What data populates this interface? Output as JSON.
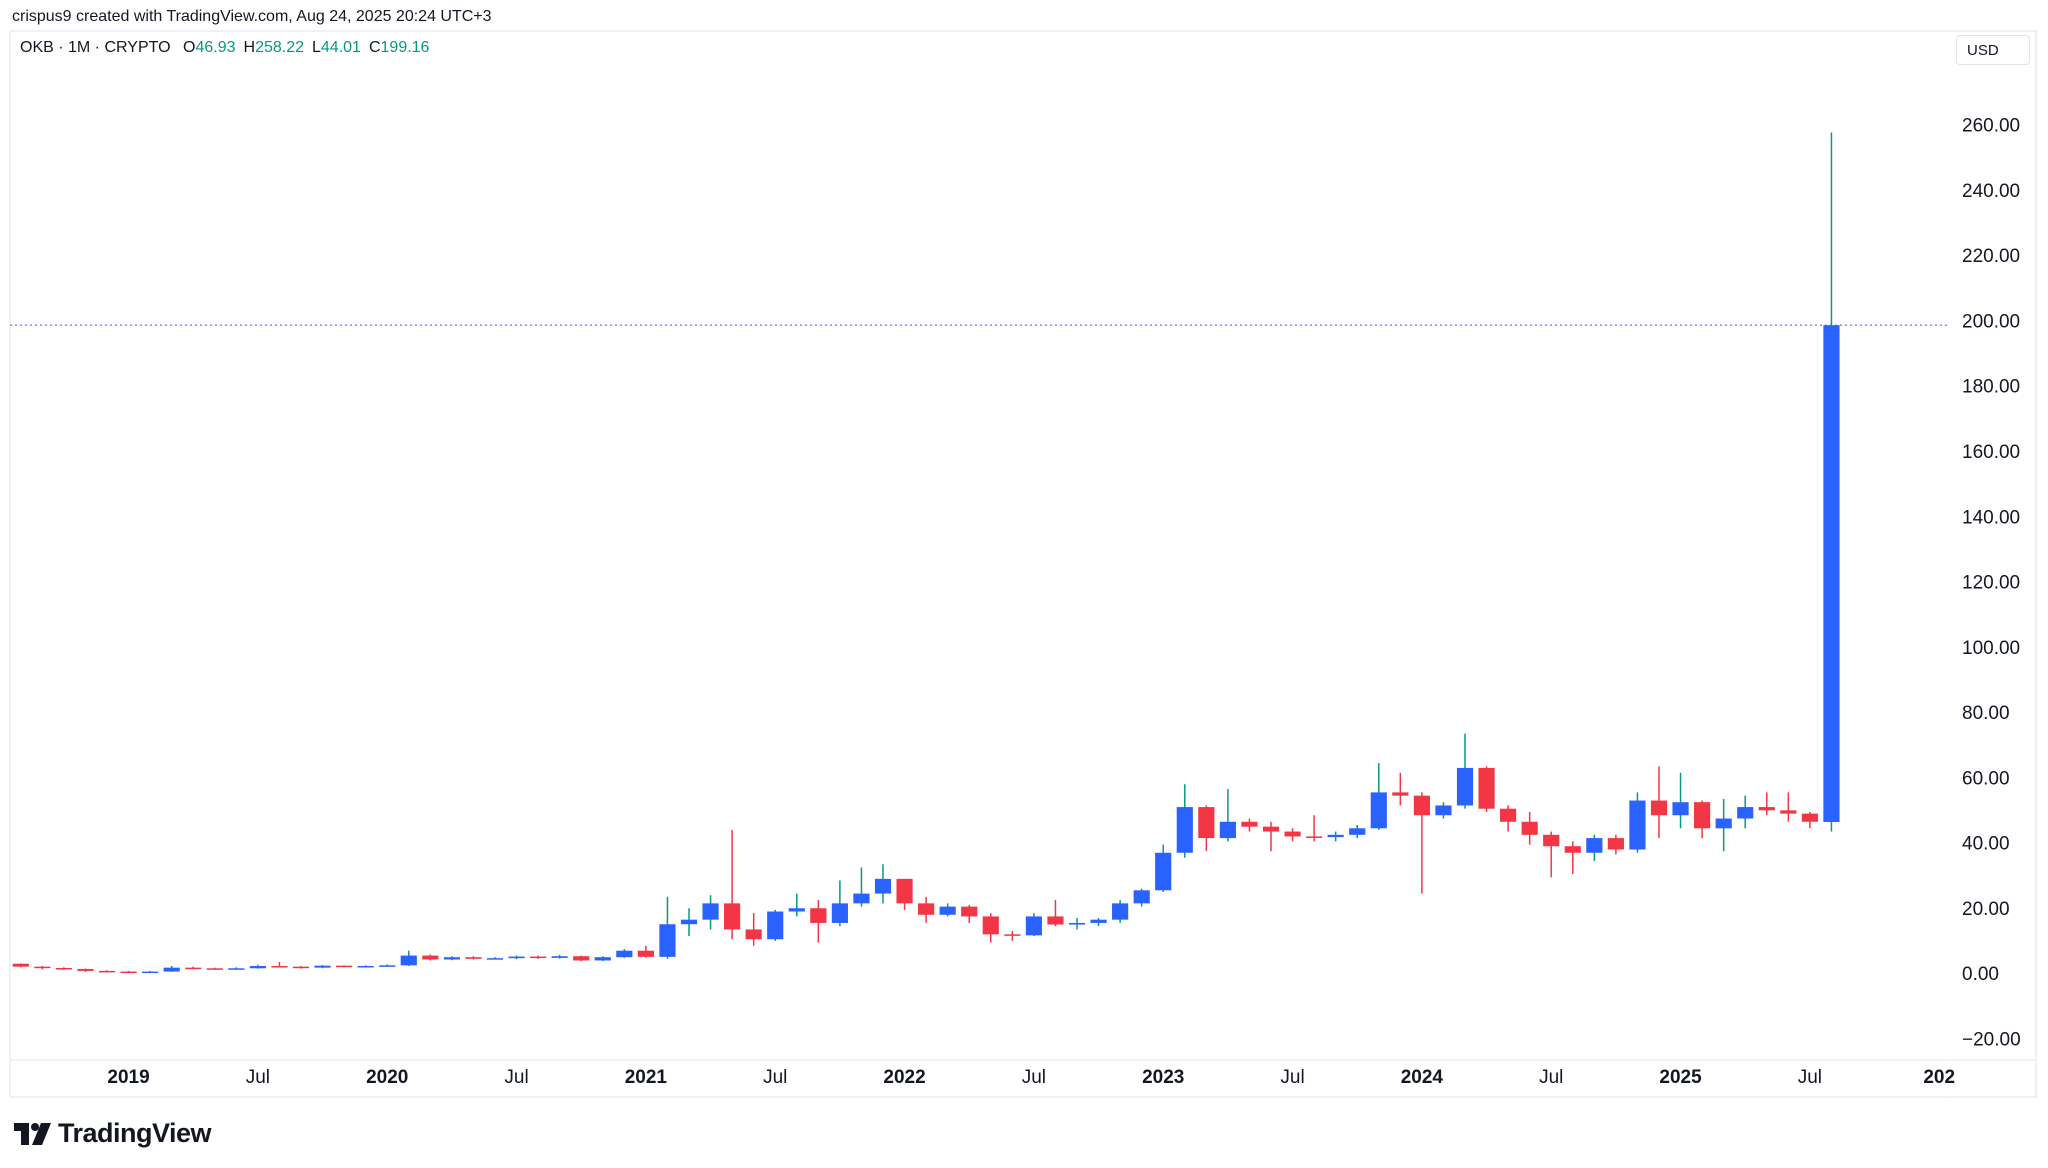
{
  "attribution": "crispus9 created with TradingView.com, Aug 24, 2025 20:24 UTC+3",
  "footer": {
    "logo_text": "TradingView"
  },
  "chart_data": {
    "type": "candlestick",
    "symbol": "OKB · 1M · CRYPTO",
    "ohlc_labels": [
      "O",
      "H",
      "L",
      "C"
    ],
    "currency": "USD",
    "up_color": "#2962ff",
    "down_color": "#f23645",
    "up_wick_color": "#089981",
    "down_wick_color": "#f23645",
    "value_color": "#089981",
    "price_line_color": "#7b7ff5",
    "x": [
      "2018-08",
      "2018-09",
      "2018-10",
      "2018-11",
      "2018-12",
      "2019-01",
      "2019-02",
      "2019-03",
      "2019-04",
      "2019-05",
      "2019-06",
      "2019-07",
      "2019-08",
      "2019-09",
      "2019-10",
      "2019-11",
      "2019-12",
      "2020-01",
      "2020-02",
      "2020-03",
      "2020-04",
      "2020-05",
      "2020-06",
      "2020-07",
      "2020-08",
      "2020-09",
      "2020-10",
      "2020-11",
      "2020-12",
      "2021-01",
      "2021-02",
      "2021-03",
      "2021-04",
      "2021-05",
      "2021-06",
      "2021-07",
      "2021-08",
      "2021-09",
      "2021-10",
      "2021-11",
      "2021-12",
      "2022-01",
      "2022-02",
      "2022-03",
      "2022-04",
      "2022-05",
      "2022-06",
      "2022-07",
      "2022-08",
      "2022-09",
      "2022-10",
      "2022-11",
      "2022-12",
      "2023-01",
      "2023-02",
      "2023-03",
      "2023-04",
      "2023-05",
      "2023-06",
      "2023-07",
      "2023-08",
      "2023-09",
      "2023-10",
      "2023-11",
      "2023-12",
      "2024-01",
      "2024-02",
      "2024-03",
      "2024-04",
      "2024-05",
      "2024-06",
      "2024-07",
      "2024-08",
      "2024-09",
      "2024-10",
      "2024-11",
      "2024-12",
      "2025-01",
      "2025-02",
      "2025-03",
      "2025-04",
      "2025-05",
      "2025-06",
      "2025-07",
      "2025-08"
    ],
    "open": [
      3.5,
      2.6,
      2.2,
      1.9,
      1.3,
      1.1,
      1.0,
      1.1,
      2.3,
      2.1,
      1.9,
      2.1,
      2.8,
      2.6,
      2.3,
      2.9,
      2.6,
      2.8,
      3.0,
      6.0,
      4.8,
      5.5,
      5.0,
      5.2,
      5.7,
      5.3,
      5.8,
      4.5,
      5.5,
      7.5,
      5.6,
      15.6,
      17,
      22,
      14,
      11,
      19.5,
      20.5,
      16,
      22,
      25,
      29.5,
      22,
      18.5,
      21,
      18,
      12.5,
      12.2,
      18,
      15.5,
      16,
      17,
      22,
      26,
      37.5,
      51.5,
      42,
      47,
      45.5,
      44,
      42.5,
      42.3,
      43,
      45,
      56,
      55,
      49,
      52,
      63.5,
      51,
      47,
      43,
      39.5,
      37.5,
      42,
      38.5,
      53.5,
      49,
      53,
      45,
      48,
      51.5,
      50.5,
      49.5,
      46.93
    ],
    "high": [
      3.6,
      2.8,
      2.4,
      2.0,
      1.5,
      1.3,
      1.3,
      2.8,
      2.6,
      2.3,
      2.4,
      3.2,
      4.0,
      2.8,
      3.1,
      3.0,
      3.0,
      3.3,
      7.5,
      6.3,
      5.8,
      5.8,
      5.5,
      6.0,
      6.0,
      6.2,
      6.0,
      5.8,
      8.0,
      9.0,
      24,
      20.5,
      24.5,
      44.5,
      19,
      20,
      25,
      23,
      29,
      33,
      34,
      29.5,
      24,
      22,
      21.5,
      19,
      13.5,
      19,
      23,
      17.5,
      17.5,
      23,
      26.5,
      40,
      58.5,
      52,
      57,
      48,
      47,
      45,
      49,
      44,
      46,
      65,
      62,
      56,
      53,
      74,
      64,
      52,
      50,
      44,
      41,
      43,
      43,
      56,
      64,
      62,
      53.5,
      54,
      55,
      56,
      56,
      50,
      258.22
    ],
    "low": [
      2.4,
      1.8,
      1.6,
      1.0,
      0.9,
      0.9,
      0.9,
      1.0,
      1.9,
      1.7,
      1.8,
      2.0,
      2.4,
      2.0,
      2.1,
      2.4,
      2.5,
      2.6,
      2.8,
      4.5,
      4.6,
      4.8,
      4.8,
      4.9,
      5.0,
      5.1,
      4.3,
      4.3,
      5.3,
      5.4,
      5,
      12,
      14,
      11,
      9,
      10.5,
      18,
      10,
      15,
      21,
      22,
      20,
      16,
      18,
      16,
      10,
      10.5,
      12,
      15,
      14,
      15,
      16,
      21,
      25.5,
      36,
      38,
      41,
      44,
      38,
      41,
      41,
      41,
      42,
      44.5,
      52,
      25,
      48,
      51,
      50,
      44,
      40,
      30,
      31,
      35,
      37,
      37.5,
      42,
      45,
      42,
      38,
      45,
      49,
      47,
      45,
      44.01
    ],
    "close": [
      2.6,
      2.2,
      1.9,
      1.3,
      1.1,
      1.0,
      1.1,
      2.3,
      2.1,
      1.9,
      2.1,
      2.8,
      2.6,
      2.3,
      2.9,
      2.6,
      2.8,
      3.0,
      6.0,
      4.8,
      5.5,
      5.0,
      5.2,
      5.7,
      5.3,
      5.8,
      4.5,
      5.5,
      7.5,
      5.6,
      15.6,
      17,
      22,
      14,
      11,
      19.5,
      20.5,
      16,
      22,
      25,
      29.5,
      22,
      18.5,
      21,
      18,
      12.5,
      12.2,
      18,
      15.5,
      16,
      17,
      22,
      26,
      37.5,
      51.5,
      42,
      47,
      45.5,
      44,
      42.5,
      42.3,
      43,
      45,
      56,
      55,
      49,
      52,
      63.5,
      51,
      47,
      43,
      39.5,
      37.5,
      42,
      38.5,
      53.5,
      49,
      53,
      45,
      48,
      51.5,
      50.5,
      49.5,
      47,
      199.16
    ],
    "xlim": [
      "2018-08",
      "2026-01"
    ],
    "xticks": [
      {
        "value": "2019-01",
        "label": "2019"
      },
      {
        "value": "2019-07",
        "label": "Jul"
      },
      {
        "value": "2020-01",
        "label": "2020"
      },
      {
        "value": "2020-07",
        "label": "Jul"
      },
      {
        "value": "2021-01",
        "label": "2021"
      },
      {
        "value": "2021-07",
        "label": "Jul"
      },
      {
        "value": "2022-01",
        "label": "2022"
      },
      {
        "value": "2022-07",
        "label": "Jul"
      },
      {
        "value": "2023-01",
        "label": "2023"
      },
      {
        "value": "2023-07",
        "label": "Jul"
      },
      {
        "value": "2024-01",
        "label": "2024"
      },
      {
        "value": "2024-07",
        "label": "Jul"
      },
      {
        "value": "2025-01",
        "label": "2025"
      },
      {
        "value": "2025-07",
        "label": "Jul"
      },
      {
        "value": "2026-01",
        "label": "202"
      }
    ],
    "ylim": [
      -26,
      289
    ],
    "yticks": [
      {
        "value": -20,
        "label": "−20.00"
      },
      {
        "value": 0,
        "label": "0.00"
      },
      {
        "value": 20,
        "label": "20.00"
      },
      {
        "value": 40,
        "label": "40.00"
      },
      {
        "value": 60,
        "label": "60.00"
      },
      {
        "value": 80,
        "label": "80.00"
      },
      {
        "value": 100,
        "label": "100.00"
      },
      {
        "value": 120,
        "label": "120.00"
      },
      {
        "value": 140,
        "label": "140.00"
      },
      {
        "value": 160,
        "label": "160.00"
      },
      {
        "value": 180,
        "label": "180.00"
      },
      {
        "value": 200,
        "label": "200.00"
      },
      {
        "value": 220,
        "label": "220.00"
      },
      {
        "value": 240,
        "label": "240.00"
      },
      {
        "value": 260,
        "label": "260.00"
      }
    ],
    "grid": false
  }
}
